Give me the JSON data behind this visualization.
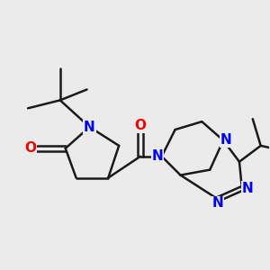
{
  "bg_color": "#ebebeb",
  "bond_color": "#1a1a1a",
  "N_color": "#0000ee",
  "O_color": "#ee0000",
  "line_width": 1.8,
  "figsize": [
    3.0,
    3.0
  ],
  "dpi": 100,
  "xlim": [
    0,
    10
  ],
  "ylim": [
    0,
    10
  ]
}
